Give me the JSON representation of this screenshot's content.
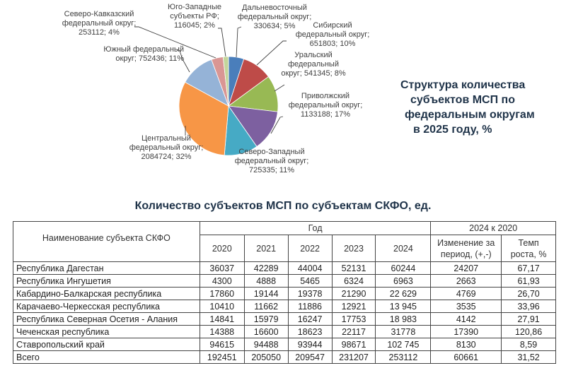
{
  "chart_data": [
    {
      "type": "pie",
      "title": "Структура количества субъектов МСП по федеральным округам в 2025 году, %",
      "categories": [
        "Дальневосточный федеральный округ",
        "Сибирский федеральный округ",
        "Уральский федеральный округ",
        "Приволжский федеральный округ",
        "Северо-Западный федеральный округ",
        "Центральный федеральный округ",
        "Южный федеральный округ",
        "Северо-Кавказский федеральный округ",
        "Юго-Западные субъекты РФ"
      ],
      "values": [
        330634,
        651803,
        541345,
        1133188,
        725335,
        2084724,
        752436,
        253112,
        116045
      ],
      "percents": [
        5,
        10,
        8,
        17,
        11,
        32,
        11,
        4,
        2
      ],
      "colors": [
        "#4a7ebb",
        "#be4b48",
        "#98b954",
        "#7d60a0",
        "#46aac5",
        "#f79646",
        "#95b3d7",
        "#d99694",
        "#c3d69b"
      ],
      "legend": "none (data labels)"
    },
    {
      "type": "table",
      "title": "Количество субъектов МСП по субъектам СКФО, ед.",
      "columns": [
        "Наименование субъекта СКФО",
        "2020",
        "2021",
        "2022",
        "2023",
        "2024",
        "Изменение за период, (+,-)",
        "Темп роста, %"
      ],
      "rows": [
        [
          "Республика Дагестан",
          36037,
          42289,
          44004,
          52131,
          60244,
          24207,
          67.17
        ],
        [
          "Республика Ингушетия",
          4300,
          4888,
          5465,
          6324,
          6963,
          2663,
          61.93
        ],
        [
          "Кабардино-Балкарская республика",
          17860,
          19144,
          19378,
          21290,
          22629,
          4769,
          26.7
        ],
        [
          "Карачаево-Черкесская республика",
          10410,
          11662,
          11886,
          12921,
          13945,
          3535,
          33.96
        ],
        [
          "Республика Северная Осетия - Алания",
          14841,
          15979,
          16247,
          17753,
          18983,
          4142,
          27.91
        ],
        [
          "Чеченская республика",
          14388,
          16600,
          18623,
          22117,
          31778,
          17390,
          120.86
        ],
        [
          "Ставропольский край",
          94615,
          94488,
          93944,
          98671,
          102745,
          8130,
          8.59
        ],
        [
          "Всего",
          192451,
          205050,
          209547,
          231207,
          253112,
          60661,
          31.52
        ]
      ]
    }
  ],
  "pie": {
    "title_lines": [
      "Структура количества",
      "субъектов МСП по",
      "федеральным округам",
      "в 2025 году, %"
    ],
    "labels": {
      "dv": "Дальневосточный\nфедеральный округ;\n330634; 5%",
      "sib": "Сибирский\nфедеральный округ;\n651803; 10%",
      "ural": "Уральский\nфедеральный\nокруг; 541345; 8%",
      "privol": "Приволжский\nфедеральный округ;\n1133188; 17%",
      "sz": "Северо-Западный\nфедеральный округ;\n725335; 11%",
      "centr": "Центральный\nфедеральный округ;\n2084724; 32%",
      "yuzh": "Южный федеральный\nокруг; 752436; 11%",
      "sk": "Северо-Кавказский\nфедеральный округ;\n253112; 4%",
      "yuz": "Юго-Западные\nсубъекты РФ;\n116045; 2%"
    }
  },
  "table": {
    "title": "Количество субъектов МСП по субъектам СКФО, ед.",
    "header": {
      "name": "Наименование субъекта СКФО",
      "year_group": "Год",
      "years": [
        "2020",
        "2021",
        "2022",
        "2023",
        "2024"
      ],
      "change_group": "2024 к 2020",
      "change": "Изменение за\nпериод, (+,-)",
      "rate": "Темп\nроста, %"
    },
    "rows": [
      [
        "Республика Дагестан",
        "36037",
        "42289",
        "44004",
        "52131",
        "60244",
        "24207",
        "67,17"
      ],
      [
        "Республика Ингушетия",
        "4300",
        "4888",
        "5465",
        "6324",
        "6963",
        "2663",
        "61,93"
      ],
      [
        "Кабардино-Балкарская республика",
        "17860",
        "19144",
        "19378",
        "21290",
        "22 629",
        "4769",
        "26,70"
      ],
      [
        "Карачаево-Черкесская республика",
        "10410",
        "11662",
        "11886",
        "12921",
        "13 945",
        "3535",
        "33,96"
      ],
      [
        "Республика Северная Осетия - Алания",
        "14841",
        "15979",
        "16247",
        "17753",
        "18 983",
        "4142",
        "27,91"
      ],
      [
        "Чеченская республика",
        "14388",
        "16600",
        "18623",
        "22117",
        "31778",
        "17390",
        "120,86"
      ],
      [
        "Ставропольский край",
        "94615",
        "94488",
        "93944",
        "98671",
        "102 745",
        "8130",
        "8,59"
      ],
      [
        "Всего",
        "192451",
        "205050",
        "209547",
        "231207",
        "253112",
        "60661",
        "31,52"
      ]
    ]
  }
}
